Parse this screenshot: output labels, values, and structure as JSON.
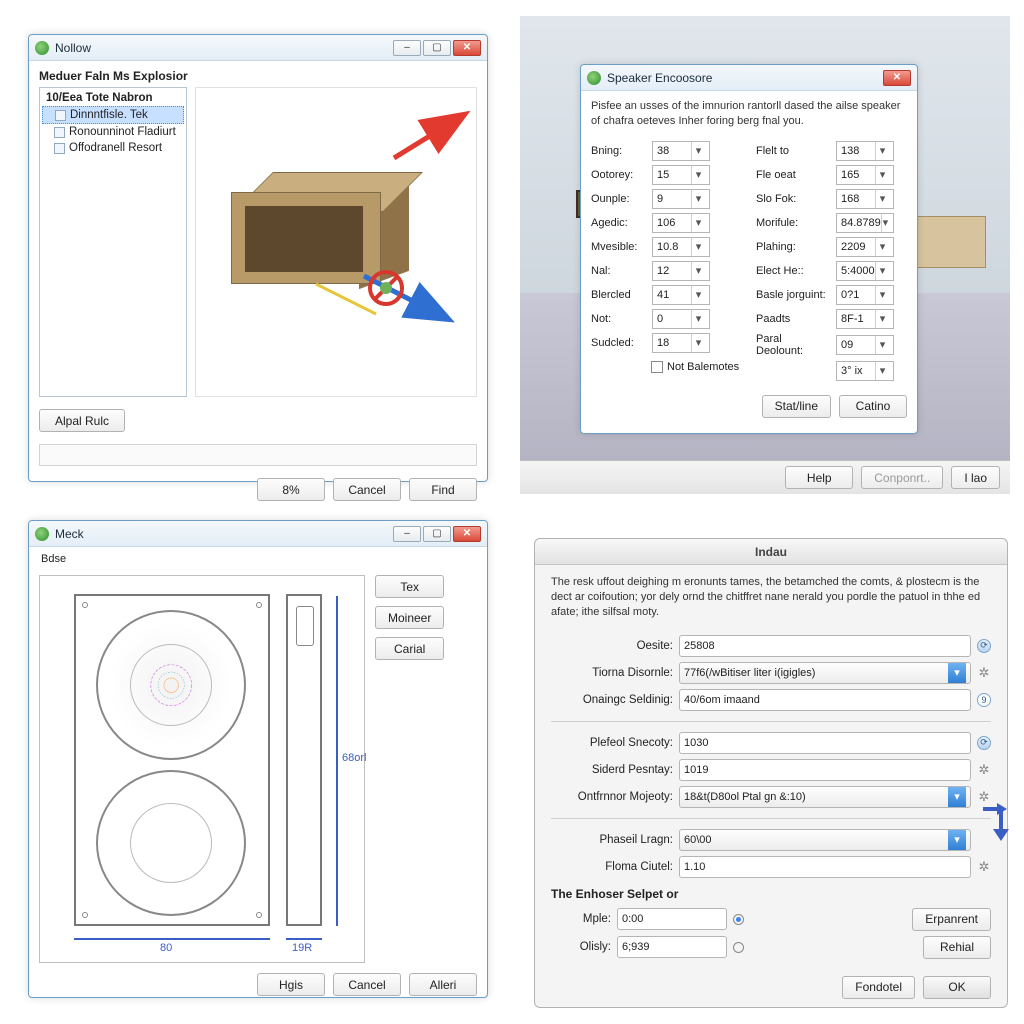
{
  "panel1": {
    "window_title": "Nollow",
    "subheading": "Meduer Faln Ms Explosior",
    "tree": {
      "header": "10/Eea Tote Nabron",
      "items": [
        {
          "label": "Dinnntfisle. Tek",
          "selected": true
        },
        {
          "label": "Ronounninot Fladiurt",
          "selected": false
        },
        {
          "label": "Offodranell Resort",
          "selected": false
        }
      ]
    },
    "left_button": "Alpal Rulc",
    "footer": {
      "ok": "8%",
      "cancel": "Cancel",
      "find": "Find"
    },
    "box_color_front": "#b79a68",
    "box_color_top": "#c9ae7f",
    "box_color_side": "#8f7247",
    "box_color_inner": "#5e482d",
    "arrow_red": "#e33a2f",
    "arrow_blue": "#2f6fd1",
    "arrow_yellow": "#e6c63a",
    "forbid_red": "#d7372d"
  },
  "panel2": {
    "window_title": "Speaker Encoosore",
    "description": "Pisfee an usses of the imnurion rantorll dased the ailse speaker of chafra oeteves Inher foring berg fnal you.",
    "left_fields": [
      {
        "label": "Bning:",
        "value": "38"
      },
      {
        "label": "Ootorey:",
        "value": "15"
      },
      {
        "label": "Ounple:",
        "value": "9"
      },
      {
        "label": "Agedic:",
        "value": "106"
      },
      {
        "label": "Mvesible:",
        "value": "10.8"
      },
      {
        "label": "Nal:",
        "value": "12"
      },
      {
        "label": "Blercled",
        "value": "41"
      },
      {
        "label": "Not:",
        "value": "0"
      },
      {
        "label": "Sudcled:",
        "value": "18"
      }
    ],
    "right_fields": [
      {
        "label": "Flelt to",
        "value": "138"
      },
      {
        "label": "Fle oeat",
        "value": "165"
      },
      {
        "label": "Slo Fok:",
        "value": "168"
      },
      {
        "label": "Morifule:",
        "value": "84.8789"
      },
      {
        "label": "Plahing:",
        "value": "2209"
      },
      {
        "label": "Elect He::",
        "value": "5:4000"
      },
      {
        "label": "Basle jorguint:",
        "value": "0?1"
      },
      {
        "label": "Paadts",
        "value": "8F-1"
      },
      {
        "label": "Paral Deolount:",
        "value": "09"
      },
      {
        "label": "",
        "value": "3° ix"
      }
    ],
    "checkbox_label": "Not Balemotes",
    "footer": {
      "save": "Stat/line",
      "cancel": "Catino"
    },
    "toolbar": {
      "help": "Help",
      "component": "Conponrt..",
      "mag": "I lao"
    }
  },
  "panel3": {
    "window_title": "Meck",
    "box_label": "Bdse",
    "side_buttons": [
      "Tex",
      "Moineer",
      "Carial"
    ],
    "dim_height": "68orl",
    "dim_width": "80",
    "dim_depth": "19R",
    "footer": {
      "ok": "Hgis",
      "cancel": "Cancel",
      "apply": "Alleri"
    },
    "blueprint_stroke": "#777777",
    "dim_color": "#3b5ec5"
  },
  "panel4": {
    "title": "Indau",
    "description": "The resk uffout deighing m eronunts tames, the betamched the comts, & plostecm is the dect ar coifoution; yor dely ornd the chitffret nane nerald you pordle the patuol in thhe ed afate; ithe silfsal moty.",
    "fields": [
      {
        "label": "Oesite:",
        "value": "25808",
        "type": "text",
        "icon": "reload"
      },
      {
        "label": "Tiorna Disornle:",
        "value": "77f6(/wBitiser liter i(igigles)",
        "type": "combo",
        "icon": "gear"
      },
      {
        "label": "Onaingc Seldinig:",
        "value": "40/6om imaand",
        "type": "text",
        "icon": "num9"
      },
      {
        "label": "Plefeol Snecoty:",
        "value": "1030",
        "type": "text",
        "icon": "reload"
      },
      {
        "label": "Siderd Pesntay:",
        "value": "1019",
        "type": "text",
        "icon": "gear"
      },
      {
        "label": "Ontfrnnor Mojeoty:",
        "value": "18&t(D80ol Ptal gn &:10)",
        "type": "combo",
        "icon": "gear"
      },
      {
        "label": "Phaseil Lragn:",
        "value": "60\\00",
        "type": "combo",
        "icon": "arrow"
      },
      {
        "label": "Floma Ciutel:",
        "value": "1.10",
        "type": "text",
        "icon": "gear"
      }
    ],
    "section_label": "The Enhoser Selpet or",
    "sub_fields": [
      {
        "label": "Mple:",
        "value": "0:00",
        "radio": true,
        "btn": "Erpanrent"
      },
      {
        "label": "Olisly:",
        "value": "6;939",
        "radio": false,
        "btn": "Rehial"
      }
    ],
    "footer": {
      "left": "Fondotel",
      "ok": "OK"
    },
    "arrow_color": "#3b5ec5"
  }
}
